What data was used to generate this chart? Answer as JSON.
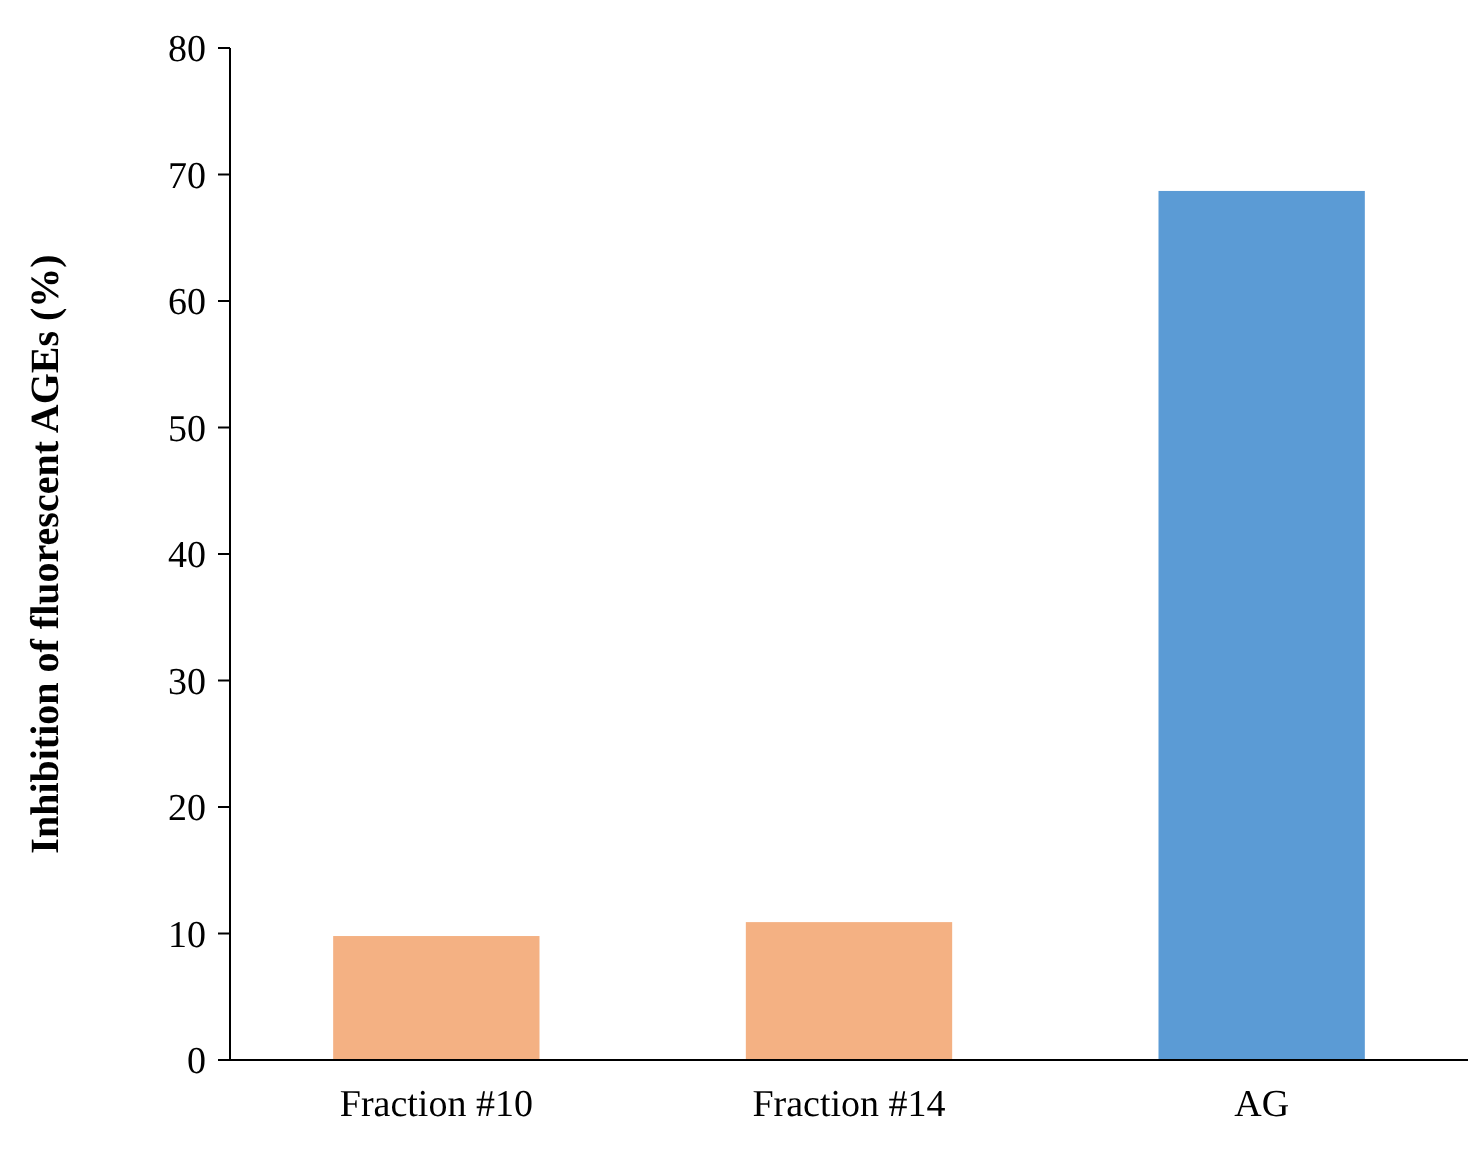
{
  "chart_data": {
    "type": "bar",
    "ylabel": "Inhibition of fluorescent AGEs (%)",
    "categories": [
      "Fraction #10",
      "Fraction #14",
      "AG"
    ],
    "values": [
      9.8,
      10.9,
      68.7
    ],
    "colors": [
      "#f4b183",
      "#f4b183",
      "#5b9bd5"
    ],
    "ylim": [
      0,
      80
    ],
    "yticks": [
      0,
      10,
      20,
      30,
      40,
      50,
      60,
      70,
      80
    ],
    "grid": false
  }
}
